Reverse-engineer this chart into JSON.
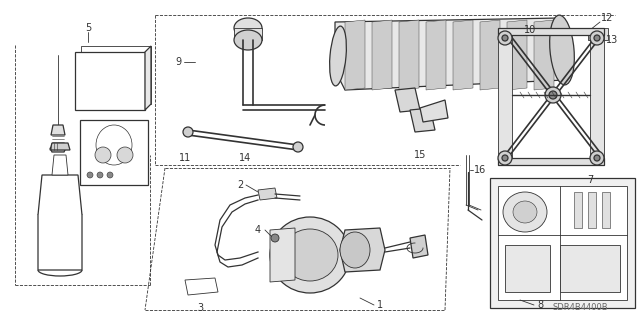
{
  "bg_color": "#ffffff",
  "line_color": "#333333",
  "watermark": "SDR4B4400B",
  "figsize": [
    6.4,
    3.19
  ],
  "dpi": 100
}
